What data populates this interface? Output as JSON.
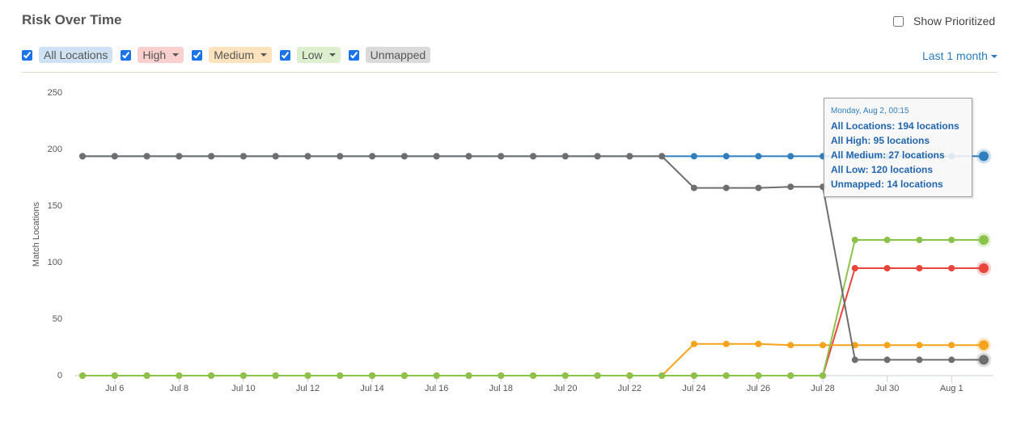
{
  "header": {
    "title": "Risk Over Time",
    "show_prioritized": "Show Prioritized",
    "range": "Last 1 month"
  },
  "chart_data": {
    "type": "line",
    "y_label": "Match Locations",
    "categories": [
      null,
      "Jul 6",
      null,
      "Jul 8",
      null,
      "Jul 10",
      null,
      "Jul 12",
      null,
      "Jul 14",
      null,
      "Jul 16",
      null,
      "Jul 18",
      null,
      "Jul 20",
      null,
      "Jul 22",
      null,
      "Jul 24",
      null,
      "Jul 26",
      null,
      "Jul 28",
      null,
      "Jul 30",
      null,
      "Aug 1",
      null
    ],
    "series": [
      {
        "name": "All Locations",
        "color": "#2f7ebd",
        "values": [
          194,
          194,
          194,
          194,
          194,
          194,
          194,
          194,
          194,
          194,
          194,
          194,
          194,
          194,
          194,
          194,
          194,
          194,
          194,
          194,
          194,
          194,
          194,
          194,
          194,
          194,
          194,
          194,
          194
        ]
      },
      {
        "name": "High",
        "color": "#e8453c",
        "values": [
          0,
          0,
          0,
          0,
          0,
          0,
          0,
          0,
          0,
          0,
          0,
          0,
          0,
          0,
          0,
          0,
          0,
          0,
          0,
          0,
          0,
          0,
          0,
          0,
          95,
          95,
          95,
          95,
          95
        ]
      },
      {
        "name": "Medium",
        "color": "#f5a31a",
        "values": [
          0,
          0,
          0,
          0,
          0,
          0,
          0,
          0,
          0,
          0,
          0,
          0,
          0,
          0,
          0,
          0,
          0,
          0,
          0,
          28,
          28,
          28,
          27,
          27,
          27,
          27,
          27,
          27,
          27
        ]
      },
      {
        "name": "Low",
        "color": "#8bc34a",
        "values": [
          0,
          0,
          0,
          0,
          0,
          0,
          0,
          0,
          0,
          0,
          0,
          0,
          0,
          0,
          0,
          0,
          0,
          0,
          0,
          0,
          0,
          0,
          0,
          0,
          120,
          120,
          120,
          120,
          120
        ]
      },
      {
        "name": "Unmapped",
        "color": "#6e6e6e",
        "values": [
          194,
          194,
          194,
          194,
          194,
          194,
          194,
          194,
          194,
          194,
          194,
          194,
          194,
          194,
          194,
          194,
          194,
          194,
          194,
          166,
          166,
          166,
          167,
          167,
          14,
          14,
          14,
          14,
          14
        ]
      }
    ],
    "ylim": [
      0,
      250
    ],
    "yticks": [
      0,
      50,
      100,
      150,
      200,
      250
    ],
    "grid": false
  },
  "tooltip": {
    "title": "Monday, Aug 2, 00:15",
    "lines": [
      "All Locations: 194 locations",
      "All High: 95 locations",
      "All Medium: 27 locations",
      "All Low: 120 locations",
      "Unmapped: 14 locations"
    ]
  }
}
